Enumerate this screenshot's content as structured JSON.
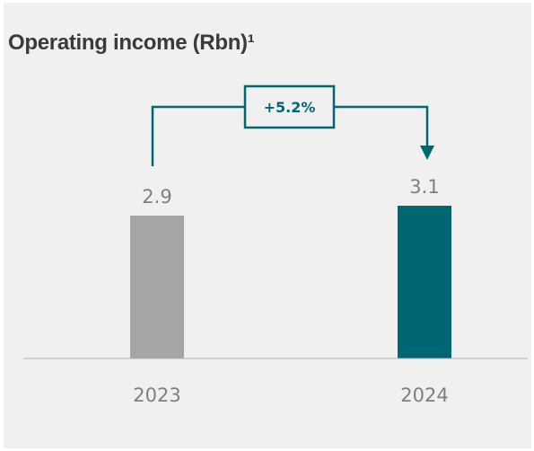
{
  "chart_data": {
    "type": "bar",
    "title": "Operating income (Rbn)¹",
    "categories": [
      "2023",
      "2024"
    ],
    "values": [
      2.9,
      3.1
    ],
    "value_labels": [
      "2.9",
      "3.1"
    ],
    "change_label": "+5.2%",
    "ylim": [
      0,
      3.1
    ],
    "grid": false,
    "bar_colors": [
      "#a5a5a5",
      "#006671"
    ],
    "accent_color": "#006671",
    "text_color": "#7f7f7f"
  }
}
